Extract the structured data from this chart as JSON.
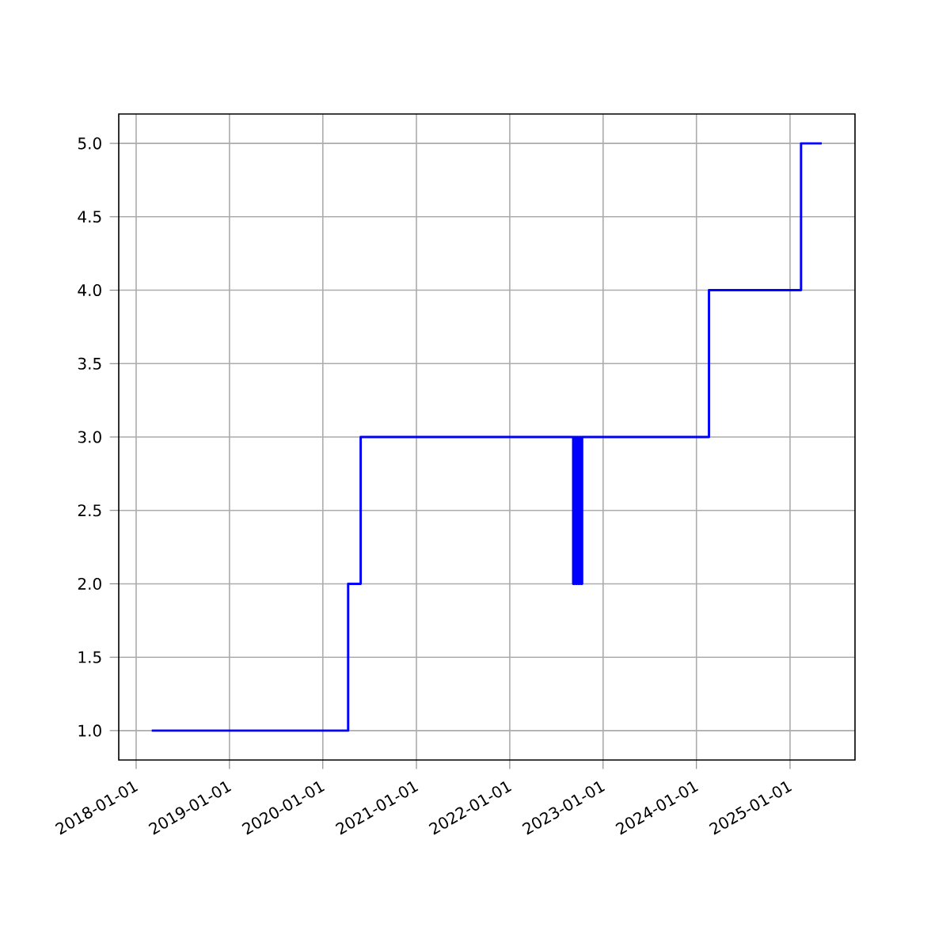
{
  "chart_data": {
    "type": "step",
    "x": [
      "2018-03-03",
      "2020-04-09",
      "2020-05-28",
      "2022-09-06",
      "2022-09-11",
      "2022-09-16",
      "2022-09-21",
      "2022-09-26",
      "2022-10-01",
      "2022-10-06",
      "2022-10-11",
      "2024-02-19",
      "2025-02-13",
      "2025-05-05"
    ],
    "values": [
      1,
      2,
      3,
      2,
      3,
      2,
      3,
      2,
      3,
      2,
      3,
      4,
      5,
      5
    ],
    "color": "#0000ff",
    "xlim": [
      "2017-10-25",
      "2025-09-12"
    ],
    "xticks": [
      "2018-01-01",
      "2019-01-01",
      "2020-01-01",
      "2021-01-01",
      "2022-01-01",
      "2023-01-01",
      "2024-01-01",
      "2025-01-01"
    ],
    "ylim": [
      0.8,
      5.2
    ],
    "yticks": [
      {
        "value": 1,
        "label": "1.0"
      },
      1.5,
      {
        "value": 2,
        "label": "2.0"
      },
      2.5,
      {
        "value": 3,
        "label": "3.0"
      },
      3.5,
      {
        "value": 4,
        "label": "4.0"
      },
      4.5,
      {
        "value": 5,
        "label": "5.0"
      }
    ],
    "grid": true,
    "marker": "none",
    "line_style": "solid"
  }
}
